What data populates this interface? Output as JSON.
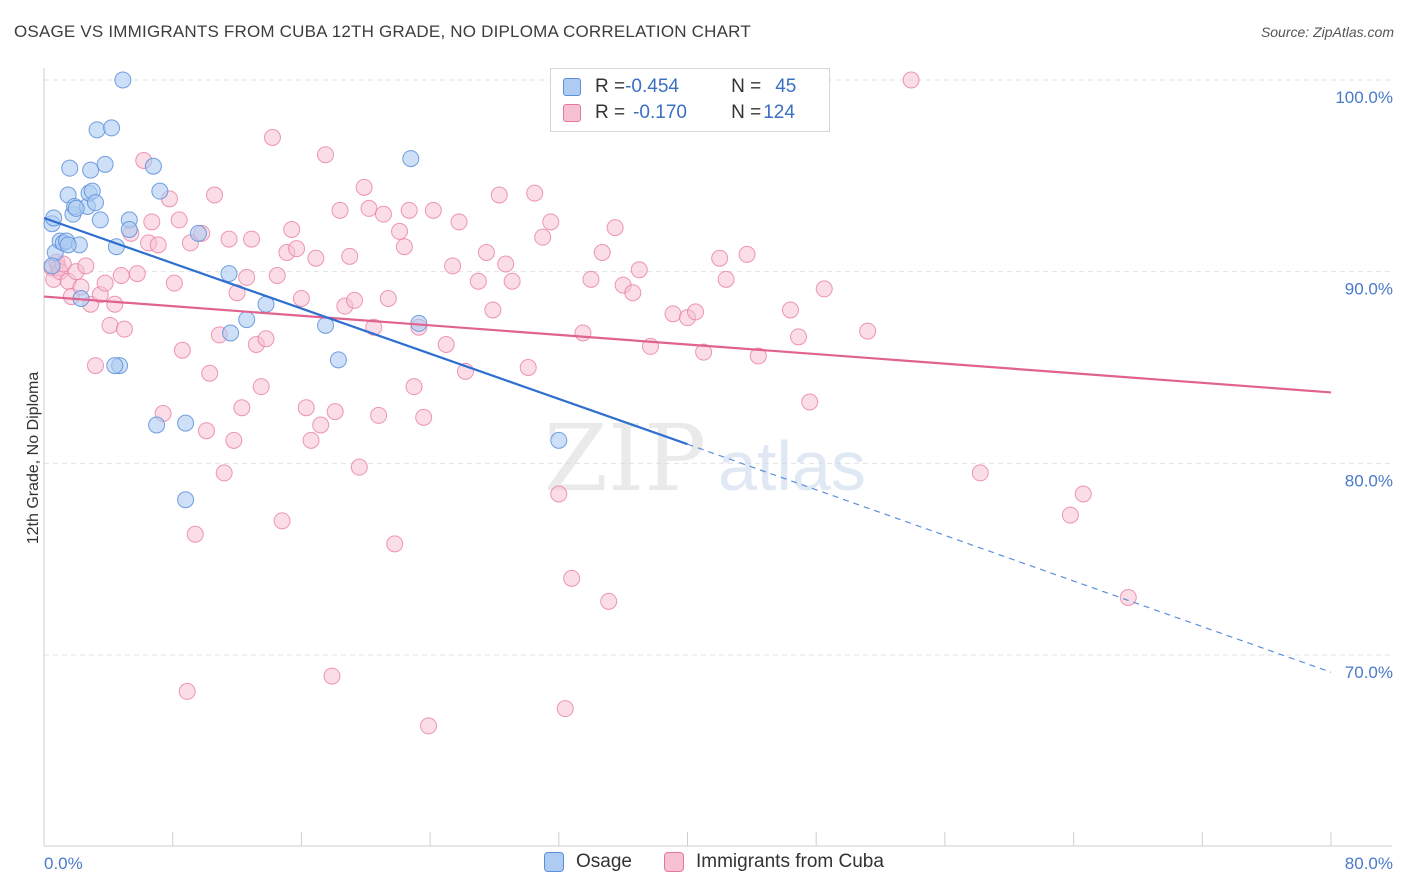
{
  "title": "OSAGE VS IMMIGRANTS FROM CUBA 12TH GRADE, NO DIPLOMA CORRELATION CHART",
  "source": "Source: ZipAtlas.com",
  "watermark": {
    "zip": "ZIP",
    "atlas": "atlas"
  },
  "colors": {
    "osage": "#5b8fd9",
    "osage_fill": "#aecbf2",
    "cuba": "#e8779e",
    "cuba_fill": "#f6c1d3",
    "axis_text": "#4a7ac8"
  },
  "legend": {
    "rows": [
      {
        "r_label": "R = ",
        "r_value": "-0.454",
        "n_label": "N = ",
        "n_value": "45"
      },
      {
        "r_label": "R = ",
        "r_value": "-0.170",
        "n_label": "N = ",
        "n_value": "124"
      }
    ]
  },
  "bottom_legend": [
    "Osage",
    "Immigrants from Cuba"
  ],
  "chart_data": {
    "type": "scatter",
    "title": "OSAGE VS IMMIGRANTS FROM CUBA 12TH GRADE, NO DIPLOMA CORRELATION CHART",
    "xlabel": "",
    "ylabel": "12th Grade, No Diploma",
    "xlim": [
      0,
      80
    ],
    "ylim": [
      60,
      101.5
    ],
    "x_tick_labels": [
      "0.0%",
      "80.0%"
    ],
    "y_ticks": [
      70,
      80,
      90,
      100
    ],
    "y_tick_labels": [
      "70.0%",
      "80.0%",
      "90.0%",
      "100.0%"
    ],
    "grid": true,
    "legend_position": "top-center",
    "series": [
      {
        "name": "Osage",
        "R": -0.454,
        "N": 45,
        "trend": {
          "x0": 0,
          "y0": 92.8,
          "x1": 40,
          "y1": 81.0,
          "dashed_to_x": 80,
          "dashed_to_y": 69.1
        },
        "points": [
          [
            0.5,
            92.5
          ],
          [
            0.6,
            92.8
          ],
          [
            0.7,
            91.0
          ],
          [
            1.0,
            91.6
          ],
          [
            1.2,
            91.5
          ],
          [
            1.4,
            91.6
          ],
          [
            1.5,
            94.0
          ],
          [
            1.6,
            95.4
          ],
          [
            1.8,
            93.0
          ],
          [
            1.9,
            93.4
          ],
          [
            2.2,
            91.4
          ],
          [
            2.3,
            88.6
          ],
          [
            2.7,
            93.4
          ],
          [
            2.8,
            94.1
          ],
          [
            2.9,
            95.3
          ],
          [
            3.0,
            94.2
          ],
          [
            3.2,
            93.6
          ],
          [
            3.3,
            97.4
          ],
          [
            3.5,
            92.7
          ],
          [
            3.8,
            95.6
          ],
          [
            4.2,
            97.5
          ],
          [
            4.5,
            91.3
          ],
          [
            4.7,
            85.1
          ],
          [
            4.9,
            100.0
          ],
          [
            5.3,
            92.7
          ],
          [
            5.3,
            92.2
          ],
          [
            6.8,
            95.5
          ],
          [
            7.0,
            82.0
          ],
          [
            7.2,
            94.2
          ],
          [
            8.8,
            78.1
          ],
          [
            8.8,
            82.1
          ],
          [
            9.6,
            92.0
          ],
          [
            11.5,
            89.9
          ],
          [
            11.6,
            86.8
          ],
          [
            12.6,
            87.5
          ],
          [
            13.8,
            88.3
          ],
          [
            17.5,
            87.2
          ],
          [
            18.3,
            85.4
          ],
          [
            22.8,
            95.9
          ],
          [
            23.3,
            87.3
          ],
          [
            32.0,
            81.2
          ],
          [
            4.4,
            85.1
          ],
          [
            1.5,
            91.4
          ],
          [
            0.5,
            90.3
          ],
          [
            2.0,
            93.3
          ]
        ]
      },
      {
        "name": "Immigrants from Cuba",
        "R": -0.17,
        "N": 124,
        "trend": {
          "x0": 0,
          "y0": 88.7,
          "x1": 80,
          "y1": 83.7
        },
        "points": [
          [
            0.5,
            90.2
          ],
          [
            0.6,
            89.6
          ],
          [
            0.8,
            90.5
          ],
          [
            0.9,
            90.2
          ],
          [
            1.0,
            90.0
          ],
          [
            1.2,
            90.4
          ],
          [
            1.5,
            89.5
          ],
          [
            1.7,
            88.7
          ],
          [
            2.0,
            90.0
          ],
          [
            2.3,
            89.2
          ],
          [
            2.6,
            90.3
          ],
          [
            2.9,
            88.3
          ],
          [
            3.2,
            85.1
          ],
          [
            3.5,
            88.8
          ],
          [
            3.8,
            89.4
          ],
          [
            4.1,
            87.2
          ],
          [
            4.4,
            88.3
          ],
          [
            4.8,
            89.8
          ],
          [
            5.0,
            87.0
          ],
          [
            5.4,
            92.0
          ],
          [
            5.8,
            89.9
          ],
          [
            6.2,
            95.8
          ],
          [
            6.5,
            91.5
          ],
          [
            6.7,
            92.6
          ],
          [
            7.1,
            91.4
          ],
          [
            7.4,
            82.6
          ],
          [
            7.8,
            93.8
          ],
          [
            8.1,
            89.4
          ],
          [
            8.4,
            92.7
          ],
          [
            8.6,
            85.9
          ],
          [
            8.9,
            68.1
          ],
          [
            9.1,
            91.5
          ],
          [
            9.4,
            76.3
          ],
          [
            9.8,
            92.0
          ],
          [
            10.1,
            81.7
          ],
          [
            10.3,
            84.7
          ],
          [
            10.6,
            94.0
          ],
          [
            10.9,
            86.7
          ],
          [
            11.2,
            79.5
          ],
          [
            11.5,
            91.7
          ],
          [
            11.8,
            81.2
          ],
          [
            12.0,
            88.9
          ],
          [
            12.3,
            82.9
          ],
          [
            12.6,
            89.7
          ],
          [
            12.9,
            91.7
          ],
          [
            13.2,
            86.2
          ],
          [
            13.5,
            84.0
          ],
          [
            13.8,
            86.5
          ],
          [
            14.2,
            97.0
          ],
          [
            14.5,
            89.8
          ],
          [
            14.8,
            77.0
          ],
          [
            15.1,
            91.0
          ],
          [
            15.4,
            92.2
          ],
          [
            15.7,
            91.2
          ],
          [
            16.0,
            88.6
          ],
          [
            16.3,
            82.9
          ],
          [
            16.6,
            81.2
          ],
          [
            16.9,
            90.7
          ],
          [
            17.2,
            82.0
          ],
          [
            17.5,
            96.1
          ],
          [
            17.9,
            68.9
          ],
          [
            18.1,
            82.7
          ],
          [
            18.4,
            93.2
          ],
          [
            18.7,
            88.2
          ],
          [
            19.0,
            90.8
          ],
          [
            19.3,
            88.5
          ],
          [
            19.6,
            79.8
          ],
          [
            19.9,
            94.4
          ],
          [
            20.2,
            93.3
          ],
          [
            20.5,
            87.1
          ],
          [
            20.8,
            82.5
          ],
          [
            21.1,
            93.0
          ],
          [
            21.4,
            88.6
          ],
          [
            21.8,
            75.8
          ],
          [
            22.1,
            92.1
          ],
          [
            22.4,
            91.3
          ],
          [
            22.7,
            93.2
          ],
          [
            23.0,
            84.0
          ],
          [
            23.3,
            87.1
          ],
          [
            23.6,
            82.4
          ],
          [
            23.9,
            66.3
          ],
          [
            24.2,
            93.2
          ],
          [
            25.0,
            86.2
          ],
          [
            25.4,
            90.3
          ],
          [
            25.8,
            92.6
          ],
          [
            26.2,
            84.8
          ],
          [
            27.0,
            89.5
          ],
          [
            27.5,
            91.0
          ],
          [
            27.9,
            88.0
          ],
          [
            28.3,
            94.0
          ],
          [
            28.7,
            90.4
          ],
          [
            29.1,
            89.5
          ],
          [
            30.1,
            85.0
          ],
          [
            30.5,
            94.1
          ],
          [
            31.0,
            91.8
          ],
          [
            31.5,
            92.6
          ],
          [
            32.0,
            78.4
          ],
          [
            32.4,
            67.2
          ],
          [
            32.8,
            74.0
          ],
          [
            33.5,
            86.8
          ],
          [
            34.0,
            89.6
          ],
          [
            34.7,
            91.0
          ],
          [
            35.1,
            72.8
          ],
          [
            35.5,
            92.3
          ],
          [
            36.0,
            89.3
          ],
          [
            36.6,
            88.9
          ],
          [
            37.0,
            90.1
          ],
          [
            37.7,
            86.1
          ],
          [
            39.1,
            87.8
          ],
          [
            40.0,
            87.6
          ],
          [
            40.5,
            87.9
          ],
          [
            41.0,
            85.8
          ],
          [
            42.0,
            90.7
          ],
          [
            42.4,
            89.6
          ],
          [
            43.7,
            90.9
          ],
          [
            44.4,
            85.6
          ],
          [
            46.4,
            88.0
          ],
          [
            46.9,
            86.6
          ],
          [
            47.6,
            83.2
          ],
          [
            48.5,
            89.1
          ],
          [
            51.2,
            86.9
          ],
          [
            53.9,
            100.0
          ],
          [
            58.2,
            79.5
          ],
          [
            63.8,
            77.3
          ],
          [
            64.6,
            78.4
          ],
          [
            67.4,
            73.0
          ]
        ]
      }
    ]
  }
}
